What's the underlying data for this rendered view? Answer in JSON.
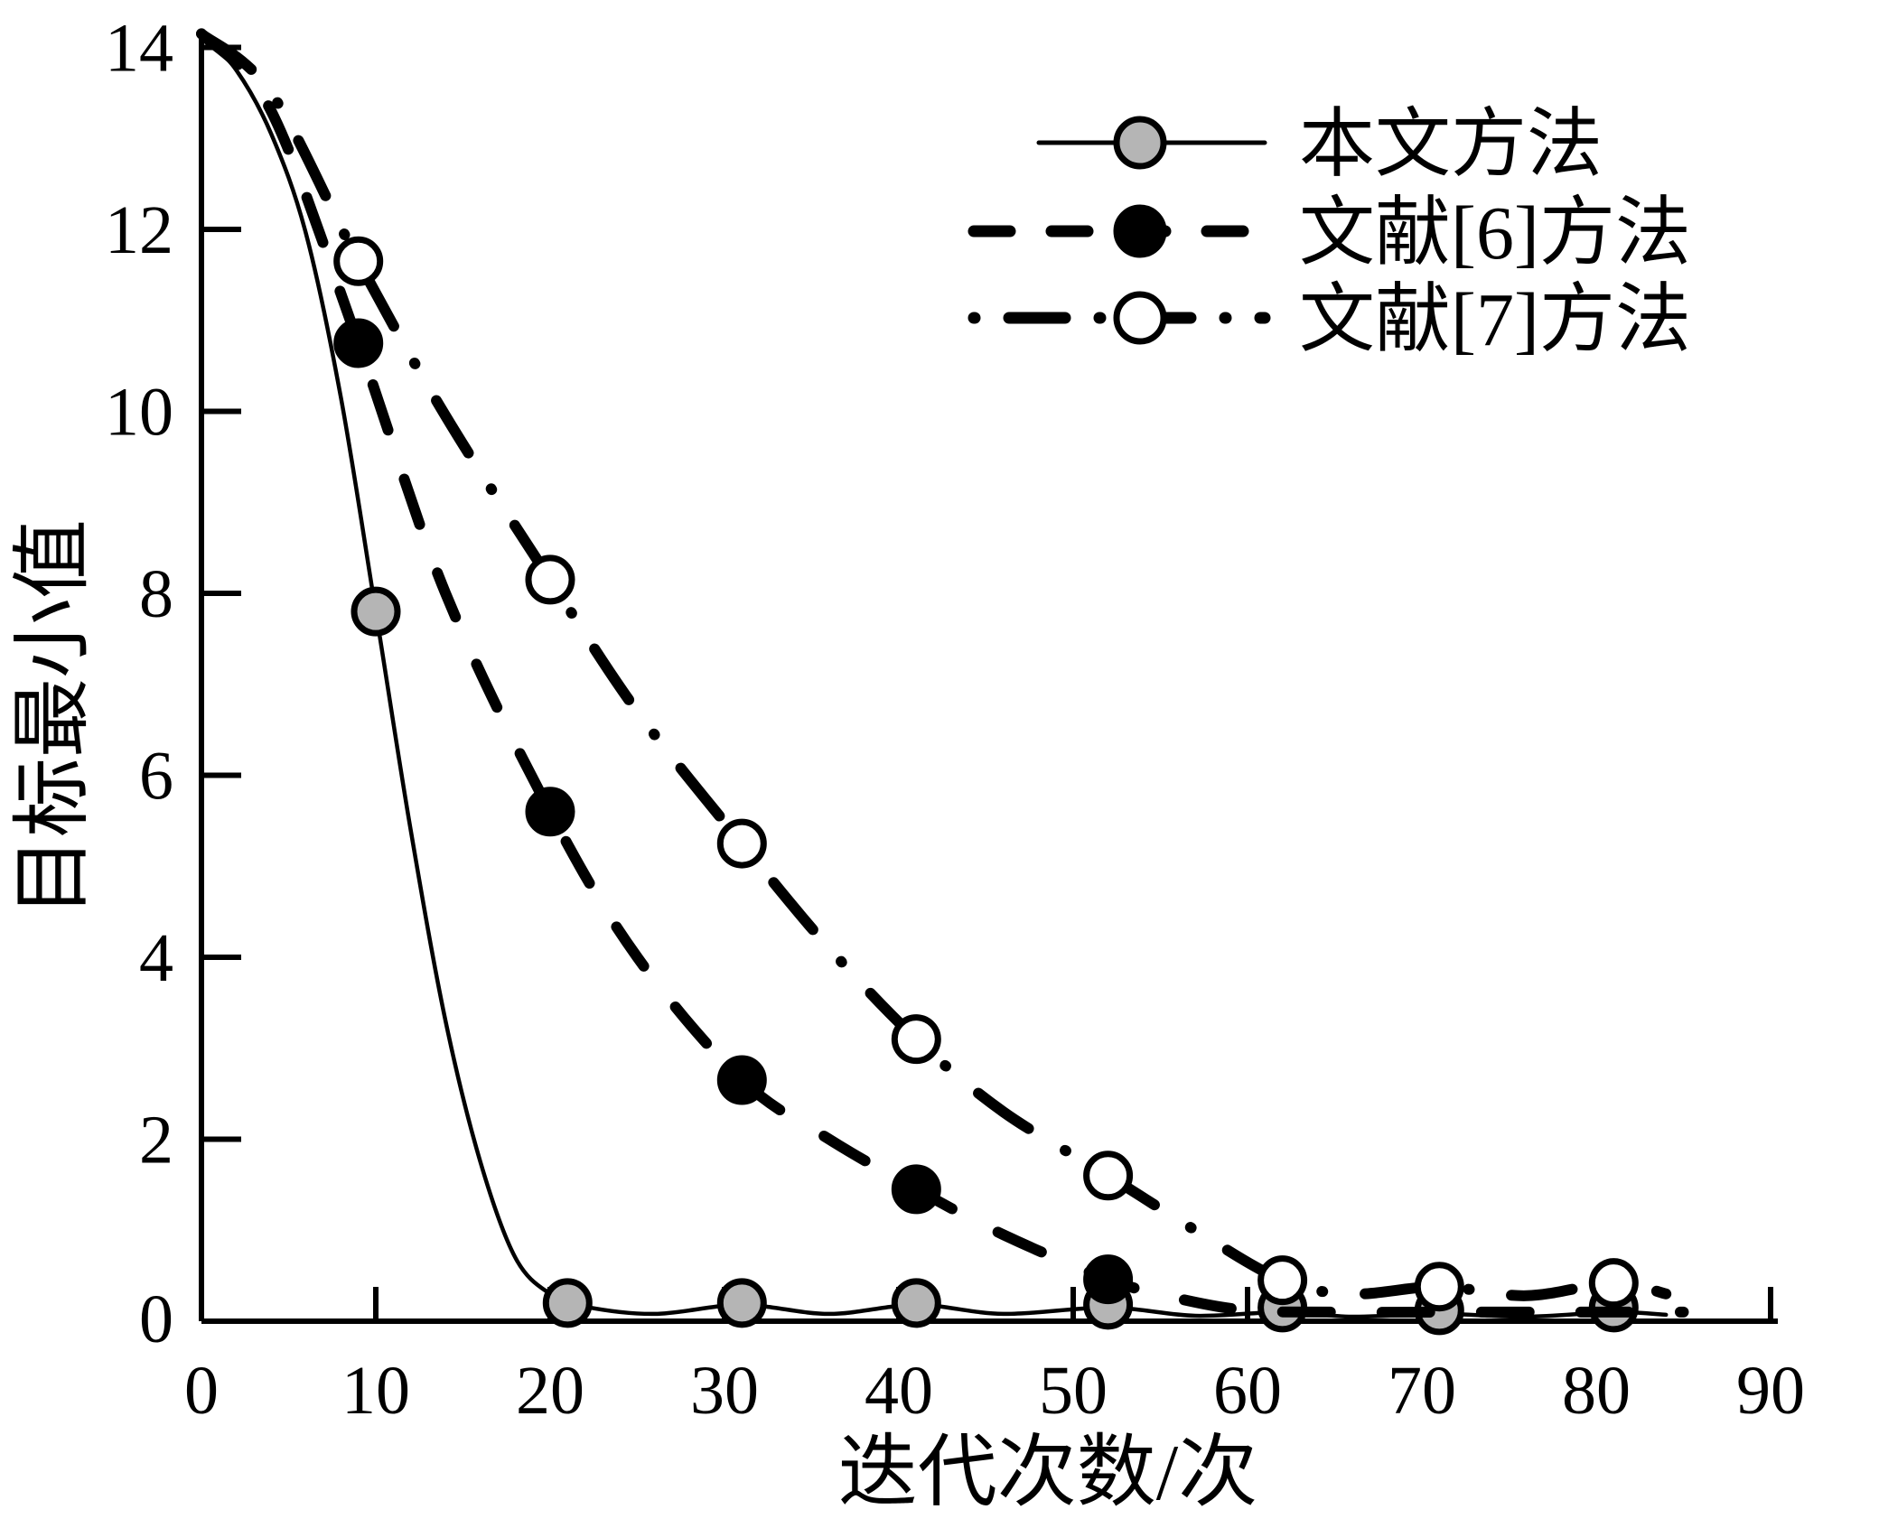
{
  "chart_data": {
    "type": "line",
    "title": "",
    "xlabel": "迭代次数/次",
    "ylabel": "目标最小值",
    "xlim": [
      0,
      90
    ],
    "ylim": [
      0,
      14
    ],
    "xticks": [
      0,
      10,
      20,
      30,
      40,
      50,
      60,
      70,
      80,
      90
    ],
    "yticks": [
      0,
      2,
      4,
      6,
      8,
      10,
      12,
      14
    ],
    "grid": false,
    "legend_position": "top-right",
    "colors": {
      "line": "#000000",
      "gray_marker_fill": "#b5b5b5",
      "black_marker_fill": "#000000",
      "white_marker_fill": "#ffffff",
      "background": "#ffffff"
    },
    "series": [
      {
        "name": "本文方法",
        "line_style": "solid",
        "marker": "circle",
        "marker_fill": "#b5b5b5",
        "line": [
          [
            0,
            14.15
          ],
          [
            2,
            13.75
          ],
          [
            4,
            13.05
          ],
          [
            6,
            11.95
          ],
          [
            8,
            10.15
          ],
          [
            10,
            7.8
          ],
          [
            12,
            5.4
          ],
          [
            14,
            3.3
          ],
          [
            16,
            1.75
          ],
          [
            18,
            0.7
          ],
          [
            20,
            0.3
          ],
          [
            22,
            0.16
          ],
          [
            26,
            0.08
          ],
          [
            31,
            0.18
          ],
          [
            36,
            0.08
          ],
          [
            41,
            0.18
          ],
          [
            46,
            0.08
          ],
          [
            52,
            0.15
          ],
          [
            57,
            0.06
          ],
          [
            62,
            0.1
          ],
          [
            66,
            0.05
          ],
          [
            71,
            0.08
          ],
          [
            76,
            0.05
          ],
          [
            81,
            0.1
          ],
          [
            84,
            0.07
          ]
        ],
        "markers": [
          [
            10,
            7.8
          ],
          [
            21,
            0.2
          ],
          [
            31,
            0.2
          ],
          [
            41,
            0.2
          ],
          [
            52,
            0.18
          ],
          [
            62,
            0.15
          ],
          [
            71,
            0.12
          ],
          [
            81,
            0.15
          ]
        ]
      },
      {
        "name": "文献[6]方法",
        "line_style": "dashed",
        "marker": "circle",
        "marker_fill": "#000000",
        "line": [
          [
            0,
            14.15
          ],
          [
            4,
            13.3
          ],
          [
            9,
            10.75
          ],
          [
            14,
            8.0
          ],
          [
            20,
            5.6
          ],
          [
            25,
            4.0
          ],
          [
            31,
            2.65
          ],
          [
            36,
            2.0
          ],
          [
            41,
            1.45
          ],
          [
            46,
            0.95
          ],
          [
            52,
            0.46
          ],
          [
            56,
            0.25
          ],
          [
            60,
            0.12
          ],
          [
            65,
            0.1
          ],
          [
            75,
            0.1
          ],
          [
            85,
            0.1
          ]
        ],
        "markers": [
          [
            9,
            10.75
          ],
          [
            20,
            5.6
          ],
          [
            31,
            2.65
          ],
          [
            41,
            1.45
          ],
          [
            52,
            0.46
          ]
        ]
      },
      {
        "name": "文献[7]方法",
        "line_style": "dashdot",
        "marker": "circle",
        "marker_fill": "#ffffff",
        "line": [
          [
            0,
            14.15
          ],
          [
            4,
            13.5
          ],
          [
            9,
            11.65
          ],
          [
            14,
            9.95
          ],
          [
            20,
            8.15
          ],
          [
            25,
            6.7
          ],
          [
            31,
            5.25
          ],
          [
            36,
            4.1
          ],
          [
            41,
            3.1
          ],
          [
            46,
            2.3
          ],
          [
            52,
            1.6
          ],
          [
            57,
            1.0
          ],
          [
            62,
            0.45
          ],
          [
            66,
            0.3
          ],
          [
            71,
            0.38
          ],
          [
            76,
            0.28
          ],
          [
            81,
            0.42
          ],
          [
            84,
            0.3
          ]
        ],
        "markers": [
          [
            9,
            11.65
          ],
          [
            20,
            8.15
          ],
          [
            31,
            5.25
          ],
          [
            41,
            3.1
          ],
          [
            52,
            1.6
          ],
          [
            62,
            0.45
          ],
          [
            71,
            0.38
          ],
          [
            81,
            0.42
          ]
        ]
      }
    ]
  }
}
